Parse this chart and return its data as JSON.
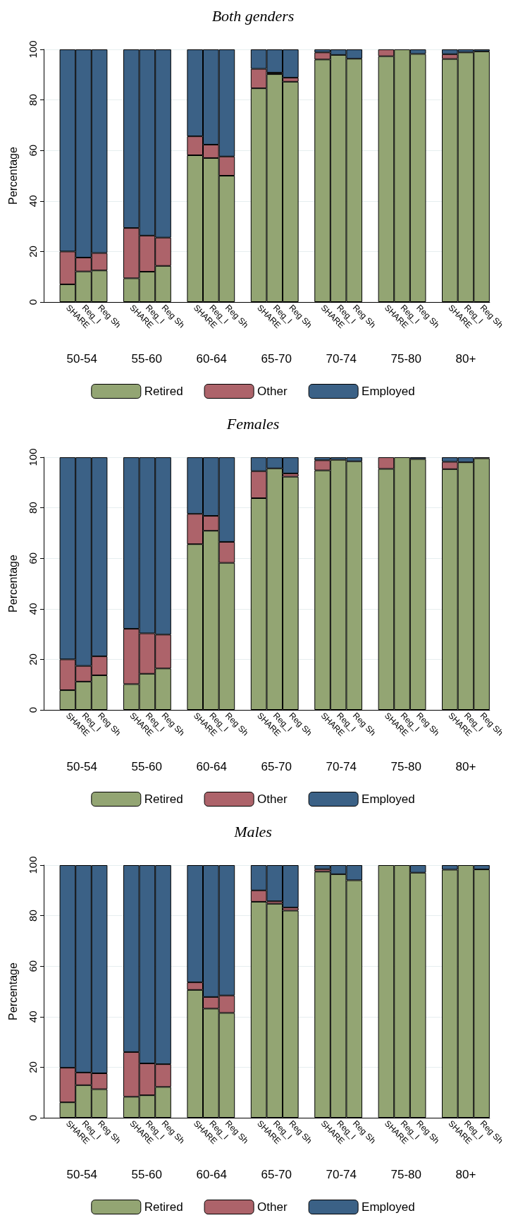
{
  "chart_data": [
    {
      "type": "bar",
      "title": "Both genders",
      "ylabel": "Percentage",
      "stacked": true,
      "grid": "y",
      "legend": "bottom",
      "ylim": [
        0,
        100
      ],
      "yticks": [
        0,
        20,
        40,
        60,
        80,
        100
      ],
      "categories": [
        null,
        "SHARE",
        "Reg_I",
        "Reg Sh",
        null,
        "SHARE",
        "Reg_I",
        "Reg Sh",
        null,
        "SHARE",
        "Reg_I",
        "Reg Sh",
        null,
        "SHARE",
        "Reg_I",
        "Reg Sh",
        null,
        "SHARE",
        "Reg_I",
        "Reg Sh",
        null,
        "SHARE",
        "Reg_I",
        "Reg Sh",
        null,
        "SHARE",
        "Reg_I",
        "Reg Sh"
      ],
      "annotations": [
        "50-54",
        "55-60",
        "60-64",
        "65-70",
        "70-74",
        "75-80",
        "80+"
      ],
      "series": [
        {
          "name": "Retired",
          "color": "#93a573",
          "values": [
            null,
            7,
            12.1,
            12.5,
            null,
            9.4,
            12,
            14.3,
            null,
            58.1,
            57,
            50,
            null,
            84.6,
            90.2,
            87.2,
            null,
            96,
            97.8,
            96.3,
            null,
            97.3,
            100,
            98.2,
            null,
            96.2,
            98.8,
            99.2
          ]
        },
        {
          "name": "Other",
          "color": "#ad636a",
          "values": [
            null,
            13,
            5.5,
            6.9,
            null,
            19.9,
            14.3,
            11.2,
            null,
            7.5,
            5.3,
            7.6,
            null,
            7.7,
            0.6,
            1.6,
            null,
            2.8,
            0,
            0,
            null,
            2.7,
            0,
            0,
            null,
            1.9,
            0,
            0
          ]
        },
        {
          "name": "Employed",
          "color": "#3b6186",
          "values": [
            null,
            80,
            82.4,
            80.6,
            null,
            70.7,
            73.7,
            74.5,
            null,
            34.4,
            37.7,
            42.4,
            null,
            7.7,
            9.2,
            11.2,
            null,
            1.2,
            2.2,
            3.7,
            null,
            0,
            0,
            1.8,
            null,
            1.9,
            1.2,
            0.8
          ]
        }
      ]
    },
    {
      "type": "bar",
      "title": "Females",
      "ylabel": "Percentage",
      "stacked": true,
      "grid": "y",
      "legend": "bottom",
      "ylim": [
        0,
        100
      ],
      "yticks": [
        0,
        20,
        40,
        60,
        80,
        100
      ],
      "categories": [
        null,
        "SHARE",
        "Reg_I",
        "Reg Sh",
        null,
        "SHARE",
        "Reg_I",
        "Reg Sh",
        null,
        "SHARE",
        "Reg_I",
        "Reg Sh",
        null,
        "SHARE",
        "Reg_I",
        "Reg Sh",
        null,
        "SHARE",
        "Reg_I",
        "Reg Sh",
        null,
        "SHARE",
        "Reg_I",
        "Reg Sh",
        null,
        "SHARE",
        "Reg_I",
        "Reg Sh"
      ],
      "annotations": [
        "50-54",
        "55-60",
        "60-64",
        "65-70",
        "70-74",
        "75-80",
        "80+"
      ],
      "series": [
        {
          "name": "Retired",
          "color": "#93a573",
          "values": [
            null,
            7.8,
            11.2,
            13.7,
            null,
            10.2,
            14.3,
            16.4,
            null,
            65.6,
            70.9,
            58.2,
            null,
            83.8,
            95.6,
            92.3,
            null,
            94.8,
            99,
            98.4,
            null,
            95.4,
            100,
            99.3,
            null,
            95.3,
            98,
            99.6
          ]
        },
        {
          "name": "Other",
          "color": "#ad636a",
          "values": [
            null,
            12.2,
            6.2,
            7.5,
            null,
            21.9,
            16,
            13.4,
            null,
            12,
            5.9,
            8.3,
            null,
            10.7,
            0,
            1.3,
            null,
            4,
            0,
            0,
            null,
            4.6,
            0,
            0,
            null,
            2.9,
            0,
            0
          ]
        },
        {
          "name": "Employed",
          "color": "#3b6186",
          "values": [
            null,
            80,
            82.6,
            78.8,
            null,
            67.9,
            69.7,
            70.2,
            null,
            22.4,
            23.2,
            33.5,
            null,
            5.5,
            4.4,
            6.4,
            null,
            1.2,
            1,
            1.6,
            null,
            0,
            0,
            0.7,
            null,
            1.8,
            2,
            0.4
          ]
        }
      ]
    },
    {
      "type": "bar",
      "title": "Males",
      "ylabel": "Percentage",
      "stacked": true,
      "grid": "y",
      "legend": "bottom",
      "ylim": [
        0,
        100
      ],
      "yticks": [
        0,
        20,
        40,
        60,
        80,
        100
      ],
      "categories": [
        null,
        "SHARE",
        "Reg_I",
        "Reg Sh",
        null,
        "SHARE",
        "Reg_I",
        "Reg Sh",
        null,
        "SHARE",
        "Reg_I",
        "Reg Sh",
        null,
        "SHARE",
        "Reg_I",
        "Reg Sh",
        null,
        "SHARE",
        "Reg_I",
        "Reg Sh",
        null,
        "SHARE",
        "Reg_I",
        "Reg Sh",
        null,
        "SHARE",
        "Reg_I",
        "Reg Sh"
      ],
      "annotations": [
        "50-54",
        "55-60",
        "60-64",
        "65-70",
        "70-74",
        "75-80",
        "80+"
      ],
      "series": [
        {
          "name": "Retired",
          "color": "#93a573",
          "values": [
            null,
            6.1,
            12.9,
            11.3,
            null,
            8.3,
            8.9,
            12.2,
            null,
            50.6,
            43.2,
            41.5,
            null,
            85.5,
            84.7,
            82,
            null,
            97.4,
            96.4,
            94,
            null,
            100,
            100,
            97,
            null,
            98.2,
            100,
            98.3
          ]
        },
        {
          "name": "Other",
          "color": "#ad636a",
          "values": [
            null,
            13.7,
            5,
            6.3,
            null,
            17.7,
            12.6,
            9,
            null,
            3,
            4.6,
            6.9,
            null,
            4.5,
            1,
            1.2,
            null,
            1,
            0,
            0,
            null,
            0,
            0,
            0,
            null,
            0,
            0,
            0
          ]
        },
        {
          "name": "Employed",
          "color": "#3b6186",
          "values": [
            null,
            80.2,
            82.1,
            82.4,
            null,
            74,
            78.5,
            78.8,
            null,
            46.4,
            52.2,
            51.6,
            null,
            10,
            14.3,
            16.8,
            null,
            1.6,
            3.6,
            6,
            null,
            0,
            0,
            3,
            null,
            1.8,
            0,
            1.7
          ]
        }
      ]
    }
  ]
}
